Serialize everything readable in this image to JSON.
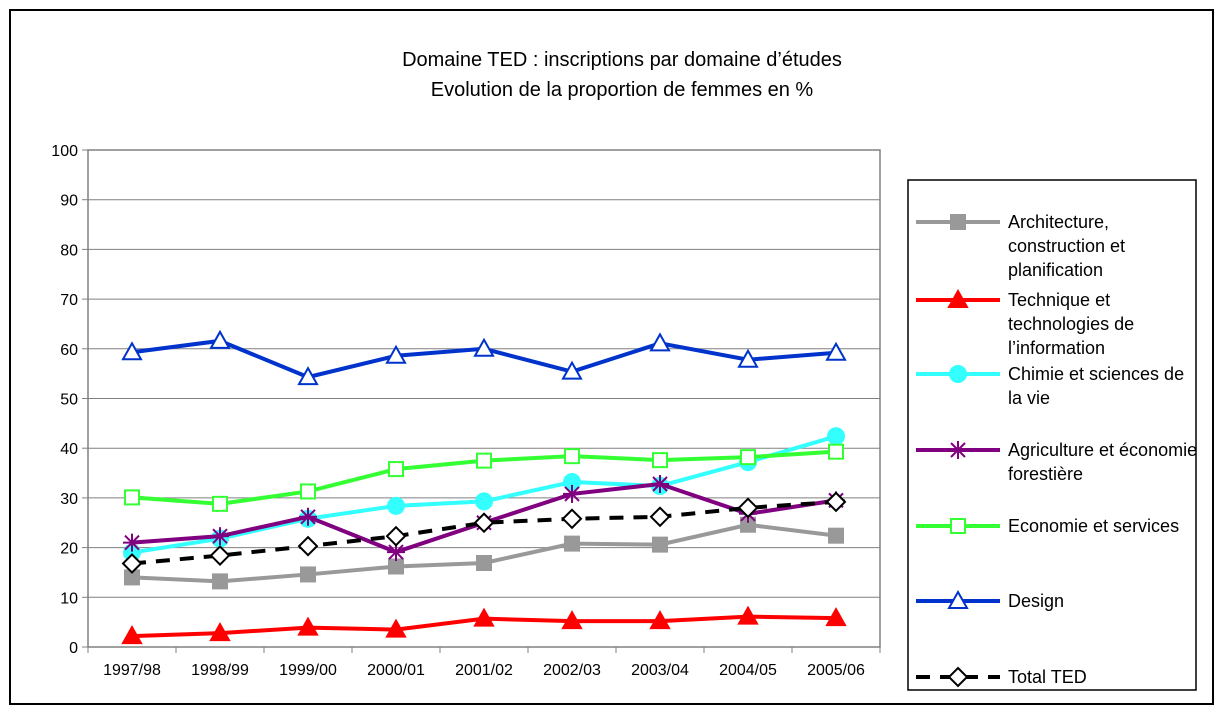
{
  "chart_data": {
    "type": "line",
    "title": "Domaine TED : inscriptions par domaine d’études",
    "subtitle": "Evolution de la proportion de femmes en %",
    "categories": [
      "1997/98",
      "1998/99",
      "1999/00",
      "2000/01",
      "2001/02",
      "2002/03",
      "2003/04",
      "2004/05",
      "2005/06"
    ],
    "ylim": [
      0,
      100
    ],
    "yticks": [
      0,
      10,
      20,
      30,
      40,
      50,
      60,
      70,
      80,
      90,
      100
    ],
    "grid": true,
    "legend": "right",
    "series": [
      {
        "name": "Architecture, construction et planification",
        "color": "#999999",
        "marker": "square",
        "marker_fill": "#999999",
        "dash": false,
        "values": [
          14,
          13.2,
          14.6,
          16.2,
          16.9,
          20.8,
          20.6,
          24.6,
          22.4
        ]
      },
      {
        "name": "Technique et technologies de l’information",
        "color": "#ff0000",
        "marker": "triangle",
        "marker_fill": "#ff0000",
        "dash": false,
        "values": [
          2.2,
          2.8,
          3.9,
          3.5,
          5.7,
          5.2,
          5.2,
          6.1,
          5.8
        ]
      },
      {
        "name": "Chimie et sciences de la vie",
        "color": "#33ffff",
        "marker": "circle",
        "marker_fill": "#33ffff",
        "dash": false,
        "values": [
          19,
          21.8,
          25.8,
          28.4,
          29.3,
          33.2,
          32.4,
          37.2,
          42.4
        ]
      },
      {
        "name": "Agriculture et économie forestière",
        "color": "#800080",
        "marker": "star",
        "marker_fill": "#800080",
        "dash": false,
        "values": [
          21,
          22.3,
          26.2,
          19.1,
          25,
          30.8,
          32.8,
          26.8,
          29.5
        ]
      },
      {
        "name": "Economie et services",
        "color": "#33ff33",
        "marker": "square",
        "marker_fill": "#ffffff",
        "dash": false,
        "values": [
          30.1,
          28.8,
          31.3,
          35.8,
          37.5,
          38.4,
          37.6,
          38.2,
          39.3
        ]
      },
      {
        "name": "Design",
        "color": "#0033cc",
        "marker": "triangle",
        "marker_fill": "#ffffff",
        "dash": false,
        "values": [
          59.3,
          61.6,
          54.3,
          58.6,
          60,
          55.4,
          61.1,
          57.8,
          59.2
        ]
      },
      {
        "name": "Total TED",
        "color": "#000000",
        "marker": "diamond",
        "marker_fill": "#ffffff",
        "dash": true,
        "values": [
          16.8,
          18.4,
          20.3,
          22.3,
          25,
          25.8,
          26.2,
          28,
          29.2
        ]
      }
    ]
  }
}
